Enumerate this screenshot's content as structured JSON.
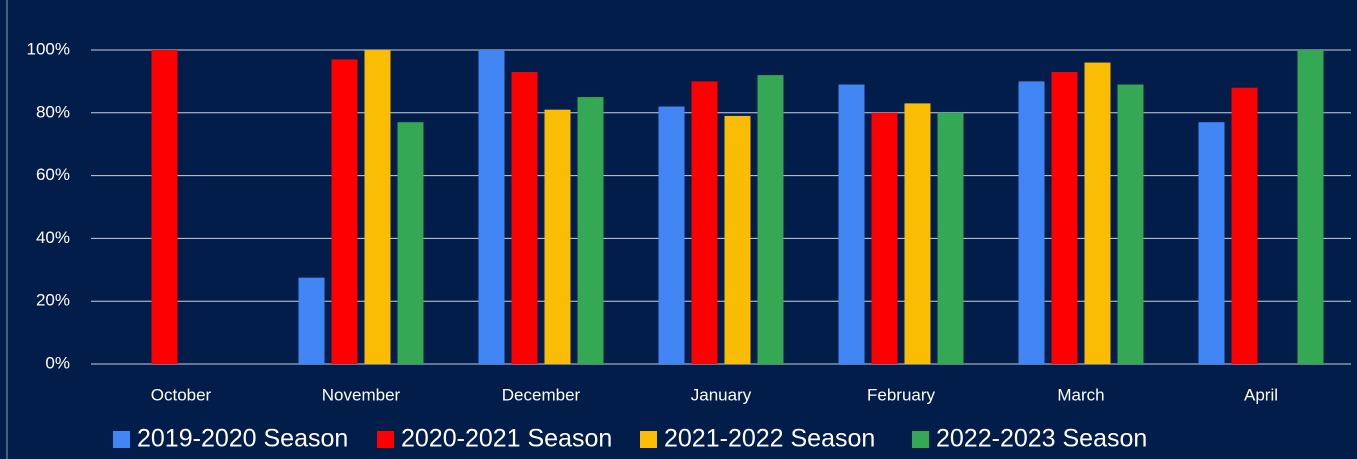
{
  "chart_data": {
    "type": "bar",
    "categories": [
      "October",
      "November",
      "December",
      "January",
      "February",
      "March",
      "April"
    ],
    "series": [
      {
        "name": "2019-2020 Season",
        "color": "#4285f4",
        "values": [
          null,
          27.5,
          100,
          82,
          89,
          90,
          77
        ]
      },
      {
        "name": "2020-2021 Season",
        "color": "#ff0000",
        "values": [
          100,
          97,
          93,
          90,
          80,
          93,
          88
        ]
      },
      {
        "name": "2021-2022 Season",
        "color": "#fbbc04",
        "values": [
          null,
          100,
          81,
          79,
          83,
          96,
          null
        ]
      },
      {
        "name": "2022-2023 Season",
        "color": "#34a853",
        "values": [
          null,
          77,
          85,
          92,
          80,
          89,
          100
        ]
      }
    ],
    "ylim": [
      0,
      100
    ],
    "yticks": [
      {
        "value": 0,
        "label": "0%"
      },
      {
        "value": 20,
        "label": "20%"
      },
      {
        "value": 40,
        "label": "40%"
      },
      {
        "value": 60,
        "label": "60%"
      },
      {
        "value": 80,
        "label": "80%"
      },
      {
        "value": 100,
        "label": "100%"
      }
    ],
    "grid": true,
    "legend": "bottom"
  }
}
